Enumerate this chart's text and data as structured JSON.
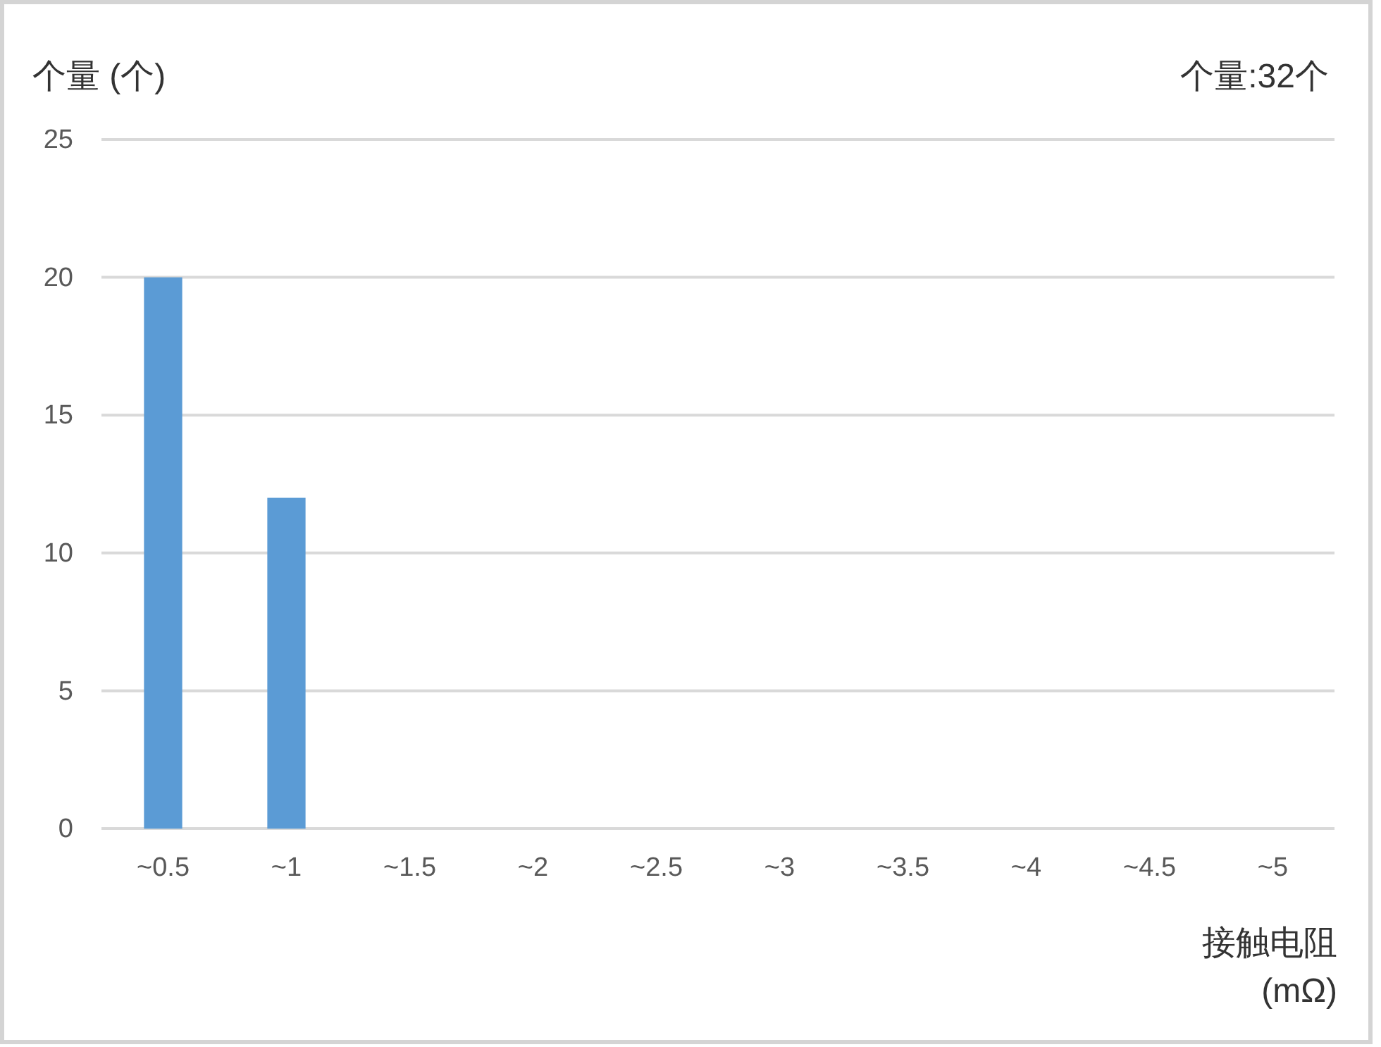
{
  "chart_data": {
    "type": "bar",
    "ylabel": "个量 (个)",
    "xlabel": "接触电阻 (mΩ)",
    "annotations": [
      "个量:32个"
    ],
    "categories": [
      "~0.5",
      "~1",
      "~1.5",
      "~2",
      "~2.5",
      "~3",
      "~3.5",
      "~4",
      "~4.5",
      "~5"
    ],
    "values": [
      20,
      12,
      0,
      0,
      0,
      0,
      0,
      0,
      0,
      0
    ],
    "color": "#5b9bd5",
    "ylim": [
      0,
      25
    ],
    "yticks": [
      0,
      5,
      10,
      15,
      20,
      25
    ],
    "grid": "y"
  }
}
